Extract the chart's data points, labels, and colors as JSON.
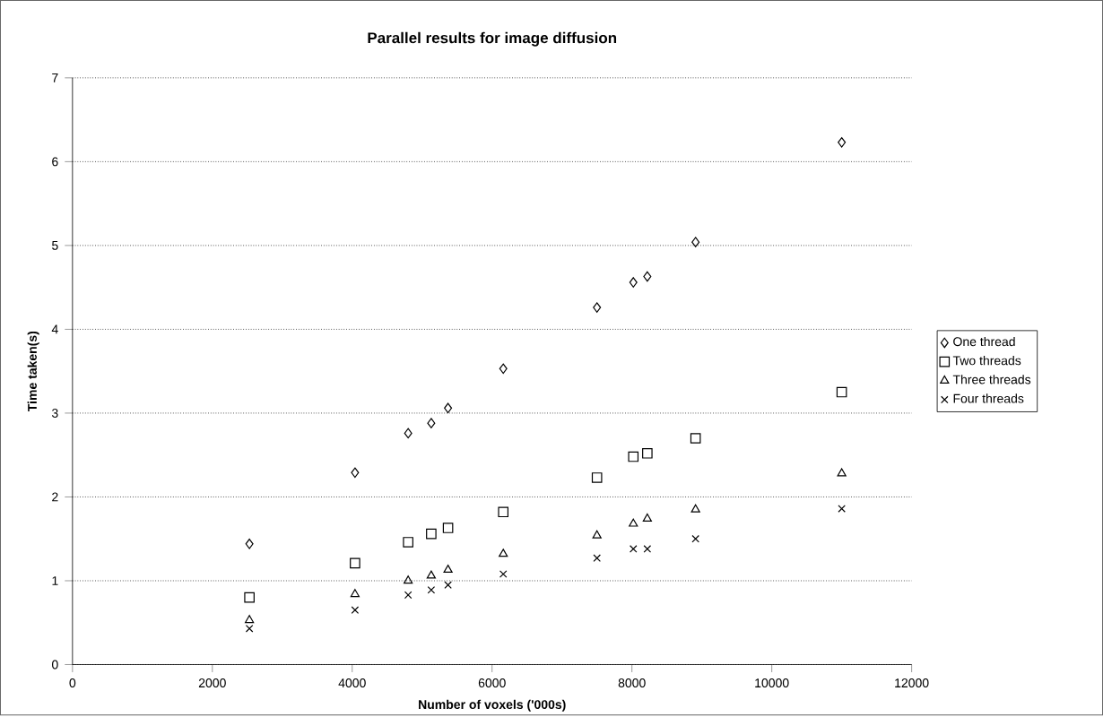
{
  "chart_data": {
    "type": "scatter",
    "title": "Parallel results for image diffusion",
    "xlabel": "Number of voxels ('000s)",
    "ylabel": "Time taken(s)",
    "x": [
      2530,
      4040,
      4800,
      5130,
      5370,
      6160,
      7500,
      8020,
      8220,
      8910,
      11000
    ],
    "series": [
      {
        "name": "One thread",
        "color": "#000000",
        "marker": "diamond",
        "values": [
          1.44,
          2.29,
          2.76,
          2.88,
          3.06,
          3.53,
          4.26,
          4.56,
          4.63,
          5.04,
          6.23
        ]
      },
      {
        "name": "Two threads",
        "color": "#000000",
        "marker": "square",
        "values": [
          0.8,
          1.21,
          1.46,
          1.56,
          1.63,
          1.82,
          2.23,
          2.48,
          2.52,
          2.7,
          3.25
        ]
      },
      {
        "name": "Three threads",
        "color": "#000000",
        "marker": "triangle",
        "values": [
          0.53,
          0.84,
          1.0,
          1.06,
          1.13,
          1.32,
          1.54,
          1.68,
          1.74,
          1.85,
          2.28
        ]
      },
      {
        "name": "Four threads",
        "color": "#000000",
        "marker": "cross",
        "values": [
          0.43,
          0.65,
          0.83,
          0.89,
          0.95,
          1.08,
          1.27,
          1.38,
          1.38,
          1.5,
          1.86
        ]
      }
    ],
    "xlim": [
      0,
      12000
    ],
    "xticks": [
      0,
      2000,
      4000,
      6000,
      8000,
      10000,
      12000
    ],
    "ylim": [
      0,
      7
    ],
    "yticks": [
      0,
      1,
      2,
      3,
      4,
      5,
      6,
      7
    ],
    "grid": "y",
    "legend": "right"
  }
}
